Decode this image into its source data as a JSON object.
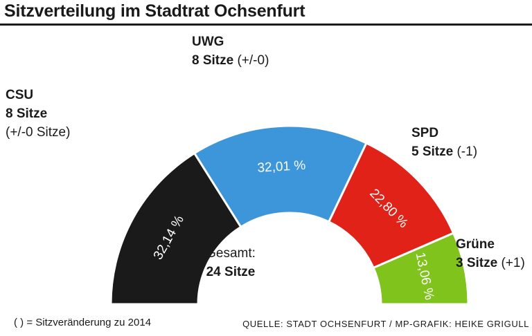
{
  "title": "Sitzverteilung im Stadtrat Ochsenfurt",
  "center": {
    "line1": "Gesamt:",
    "line2": "24 Sitze"
  },
  "footnote": "( ) = Sitzveränderung zu 2014",
  "source": "QUELLE: STADT OCHSENFURT / MP-GRAFIK: HEIKE GRIGULL",
  "parties": [
    {
      "name": "CSU",
      "seats": "8 Sitze",
      "change": "(+/-0 Sitze)"
    },
    {
      "name": "UWG",
      "seats": "8 Sitze",
      "change": "(+/-0)"
    },
    {
      "name": "SPD",
      "seats": "5 Sitze",
      "change": "(-1)"
    },
    {
      "name": "Grüne",
      "seats": "3 Sitze",
      "change": "(+1)"
    }
  ],
  "chart_data": {
    "type": "pie",
    "variant": "half-donut",
    "categories": [
      "CSU",
      "UWG",
      "SPD",
      "Grüne"
    ],
    "values": [
      32.14,
      32.01,
      22.8,
      13.06
    ],
    "value_labels": [
      "32,14 %",
      "32,01 %",
      "22,80 %",
      "13,06 %"
    ],
    "seats": [
      8,
      8,
      5,
      3
    ],
    "colors": [
      "#1a1a1a",
      "#3d96d9",
      "#e02218",
      "#7fc31c"
    ]
  }
}
